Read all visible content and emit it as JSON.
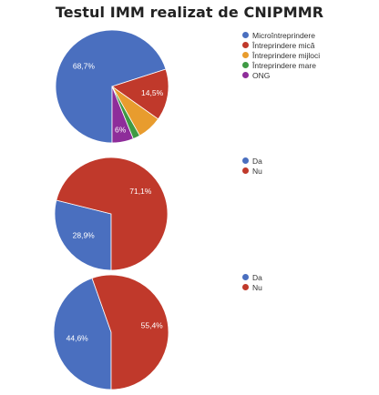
{
  "title": "Testul IMM realizat de CNIPMMR",
  "chart_data": [
    {
      "type": "pie",
      "categories": [
        "Microîntreprindere",
        "Întreprindere mică",
        "Întreprindere mijloci",
        "Întreprindere mare",
        "ONG"
      ],
      "values": [
        68.7,
        14.5,
        6.9,
        2.0,
        6.0
      ],
      "labels": [
        "68,7%",
        "14,5%",
        "",
        "",
        "6%"
      ],
      "colors": [
        "#4a6fbf",
        "#c0392b",
        "#e89c2e",
        "#3f9a44",
        "#8e2d9a"
      ],
      "legend": "right"
    },
    {
      "type": "pie",
      "categories": [
        "Da",
        "Nu"
      ],
      "values": [
        28.9,
        71.1
      ],
      "labels": [
        "28,9%",
        "71,1%"
      ],
      "colors": [
        "#4a6fbf",
        "#c0392b"
      ],
      "legend": "right"
    },
    {
      "type": "pie",
      "categories": [
        "Da",
        "Nu"
      ],
      "values": [
        44.6,
        55.4
      ],
      "labels": [
        "44,6%",
        "55,4%"
      ],
      "colors": [
        "#4a6fbf",
        "#c0392b"
      ],
      "legend": "right"
    }
  ]
}
